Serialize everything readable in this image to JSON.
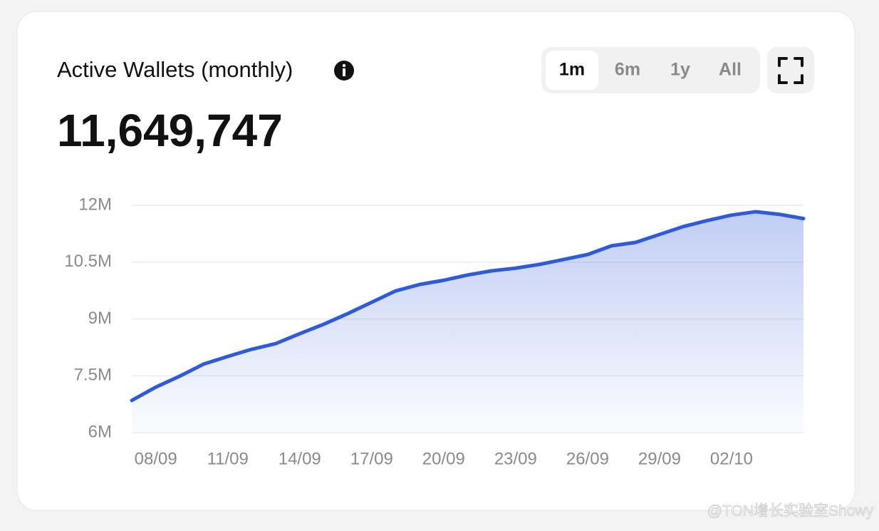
{
  "header": {
    "title": "Active Wallets (monthly)",
    "value": "11,649,747"
  },
  "range_buttons": [
    "1m",
    "6m",
    "1y",
    "All"
  ],
  "watermark": "@TON增长实验室Showy",
  "chart_data": {
    "type": "line",
    "categories": [
      null,
      "08/09",
      null,
      null,
      "11/09",
      null,
      null,
      "14/09",
      null,
      null,
      "17/09",
      null,
      null,
      "20/09",
      null,
      null,
      "23/09",
      null,
      null,
      "26/09",
      null,
      null,
      "29/09",
      null,
      null,
      "02/10",
      null,
      null,
      null
    ],
    "series": [
      {
        "color": "#2f5bd8",
        "values": [
          6.85,
          7.2,
          7.49,
          7.81,
          8.01,
          8.2,
          8.35,
          8.61,
          8.86,
          9.14,
          9.44,
          9.74,
          9.91,
          10.02,
          10.16,
          10.27,
          10.34,
          10.44,
          10.57,
          10.7,
          10.93,
          11.02,
          11.23,
          11.44,
          11.6,
          11.74,
          11.83,
          11.76,
          11.65
        ]
      }
    ],
    "ylim": [
      6,
      12
    ],
    "yticks": [
      {
        "value": 6,
        "label": "6M"
      },
      {
        "value": 7.5,
        "label": "7.5M"
      },
      {
        "value": 9,
        "label": "9M"
      },
      {
        "value": 10.5,
        "label": "10.5M"
      },
      {
        "value": 12,
        "label": "12M"
      }
    ],
    "grid": true
  }
}
